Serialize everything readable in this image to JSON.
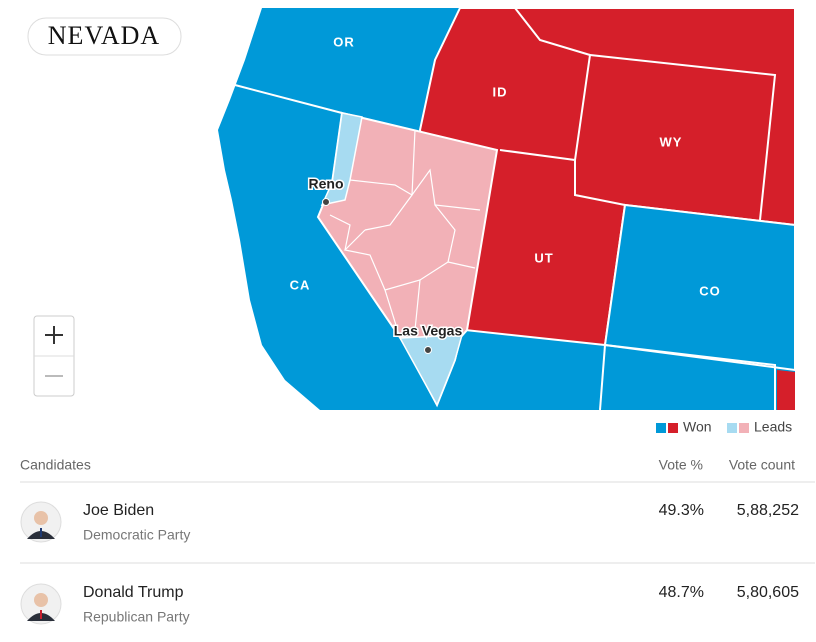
{
  "title": "NEVADA",
  "map": {
    "states": [
      "OR",
      "ID",
      "WY",
      "UT",
      "CO",
      "CA"
    ],
    "cities": [
      "Reno",
      "Las Vegas"
    ]
  },
  "legend": {
    "won": "Won",
    "leads": "Leads"
  },
  "table": {
    "headers": [
      "Candidates",
      "Vote %",
      "Vote count"
    ],
    "rows": [
      {
        "name": "Joe Biden",
        "party": "Democratic Party",
        "vote_pct": "49.3%",
        "vote_count": "5,88,252"
      },
      {
        "name": "Donald Trump",
        "party": "Republican Party",
        "vote_pct": "48.7%",
        "vote_count": "5,80,605"
      }
    ]
  }
}
